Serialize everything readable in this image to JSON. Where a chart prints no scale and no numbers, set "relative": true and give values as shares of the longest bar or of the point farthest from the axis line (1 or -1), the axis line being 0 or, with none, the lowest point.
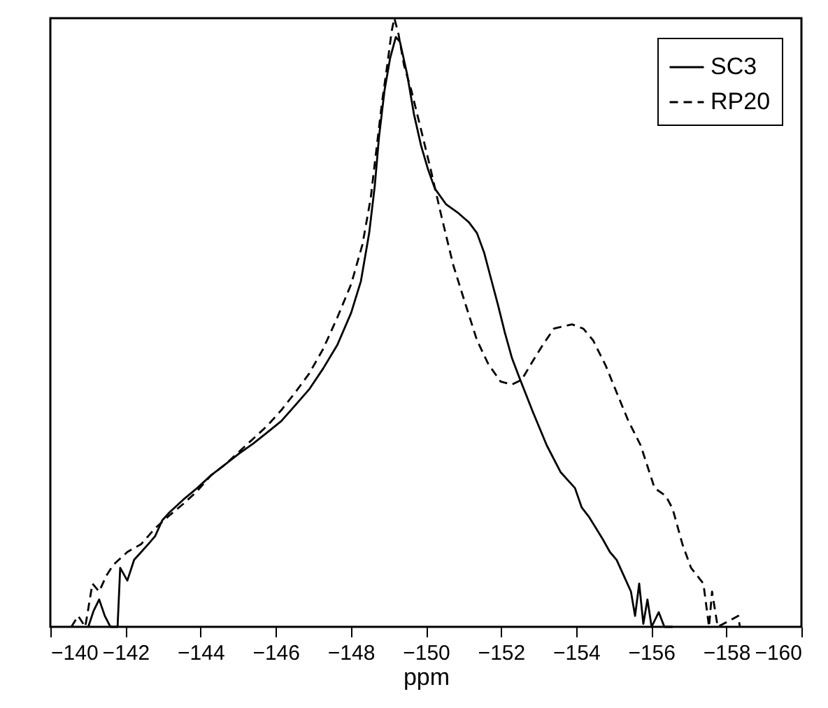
{
  "chart_data": {
    "type": "line",
    "relative": true,
    "xlabel": "ppm",
    "xlim": [
      -140,
      -160
    ],
    "xticks": [
      -140,
      -142,
      -144,
      -146,
      -148,
      -150,
      -152,
      -154,
      -156,
      -158,
      -160
    ],
    "grid": false,
    "legend": "top right",
    "marker": "none",
    "series": [
      {
        "name": "SC3",
        "color": "#000000",
        "line_style": "solid",
        "x": [
          -141.01,
          -141.15,
          -141.3,
          -141.45,
          -141.6,
          -141.79,
          -141.86,
          -142.05,
          -142.23,
          -142.42,
          -142.61,
          -142.79,
          -142.98,
          -143.17,
          -143.54,
          -143.91,
          -144.28,
          -144.66,
          -145.03,
          -145.4,
          -145.77,
          -146.15,
          -146.52,
          -146.89,
          -147.26,
          -147.64,
          -148.01,
          -148.27,
          -148.49,
          -148.64,
          -148.75,
          -148.9,
          -149.05,
          -149.2,
          -149.31,
          -149.5,
          -149.68,
          -149.87,
          -150.06,
          -150.24,
          -150.54,
          -150.84,
          -151.14,
          -151.36,
          -151.55,
          -151.73,
          -151.92,
          -152.1,
          -152.29,
          -152.48,
          -152.85,
          -153.22,
          -153.59,
          -153.78,
          -153.97,
          -154.15,
          -154.34,
          -154.53,
          -154.71,
          -154.9,
          -155.08,
          -155.27,
          -155.46,
          -155.57,
          -155.68,
          -155.79,
          -155.9,
          -156.01,
          -156.2,
          -156.35,
          -156.57
        ],
        "values": [
          0,
          0.026,
          0.045,
          0.018,
          0,
          0,
          0.097,
          0.076,
          0.11,
          0.123,
          0.136,
          0.149,
          0.175,
          0.188,
          0.209,
          0.228,
          0.249,
          0.267,
          0.285,
          0.301,
          0.319,
          0.338,
          0.364,
          0.39,
          0.424,
          0.463,
          0.516,
          0.568,
          0.647,
          0.725,
          0.804,
          0.882,
          0.935,
          0.969,
          0.961,
          0.908,
          0.843,
          0.791,
          0.751,
          0.72,
          0.694,
          0.681,
          0.665,
          0.647,
          0.615,
          0.573,
          0.529,
          0.484,
          0.442,
          0.411,
          0.353,
          0.298,
          0.254,
          0.241,
          0.228,
          0.196,
          0.181,
          0.162,
          0.144,
          0.123,
          0.11,
          0.084,
          0.058,
          0.018,
          0.071,
          0.005,
          0.045,
          0,
          0.024,
          0,
          0
        ]
      },
      {
        "name": "RP20",
        "color": "#000000",
        "line_style": "dashed",
        "x": [
          -140.56,
          -140.74,
          -140.93,
          -141.12,
          -141.3,
          -141.49,
          -141.68,
          -142.05,
          -142.42,
          -142.79,
          -143.17,
          -143.54,
          -143.91,
          -144.28,
          -144.66,
          -145.03,
          -145.4,
          -145.77,
          -146.15,
          -146.52,
          -146.89,
          -147.26,
          -147.64,
          -148.01,
          -148.31,
          -148.53,
          -148.68,
          -148.83,
          -148.98,
          -149.09,
          -149.16,
          -149.27,
          -149.42,
          -149.61,
          -149.87,
          -150.13,
          -150.42,
          -150.73,
          -151.06,
          -151.36,
          -151.66,
          -151.99,
          -152.29,
          -152.55,
          -152.85,
          -153.11,
          -153.41,
          -153.89,
          -154.19,
          -154.45,
          -154.79,
          -155.08,
          -155.38,
          -155.72,
          -156.09,
          -156.39,
          -156.57,
          -156.83,
          -157.06,
          -157.39,
          -157.54,
          -157.62,
          -157.77,
          -158.32,
          -158.36
        ],
        "values": [
          0,
          0.018,
          0,
          0.071,
          0.058,
          0.084,
          0.102,
          0.123,
          0.136,
          0.162,
          0.183,
          0.202,
          0.223,
          0.249,
          0.267,
          0.288,
          0.309,
          0.33,
          0.356,
          0.385,
          0.416,
          0.456,
          0.508,
          0.563,
          0.628,
          0.704,
          0.783,
          0.861,
          0.927,
          0.979,
          1,
          0.974,
          0.922,
          0.882,
          0.817,
          0.751,
          0.673,
          0.594,
          0.529,
          0.471,
          0.432,
          0.403,
          0.398,
          0.406,
          0.437,
          0.463,
          0.49,
          0.497,
          0.49,
          0.471,
          0.429,
          0.385,
          0.34,
          0.298,
          0.228,
          0.215,
          0.194,
          0.136,
          0.097,
          0.071,
          0,
          0.058,
          0,
          0.018,
          0
        ]
      }
    ]
  }
}
